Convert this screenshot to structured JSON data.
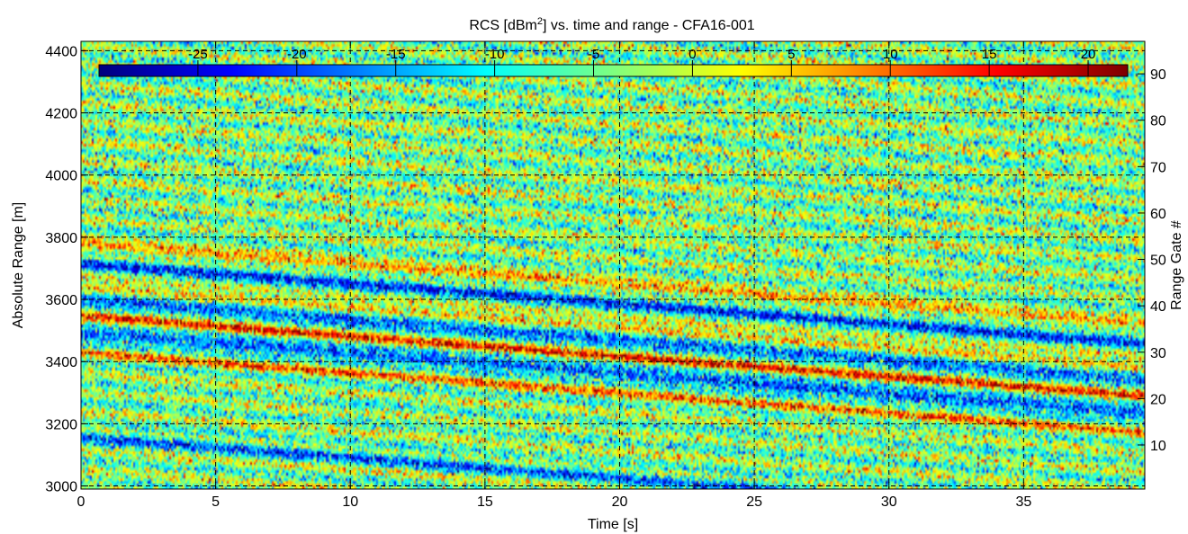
{
  "chart_data": {
    "type": "heatmap",
    "title": {
      "prefix": "RCS [dBm",
      "superscript": "2",
      "suffix": "] vs. time and range - CFA16-001"
    },
    "xlabel": "Time [s]",
    "ylabel": "Absolute Range [m]",
    "y2label": "Range Gate #",
    "xlim": [
      0,
      39.5
    ],
    "ylim": [
      2990,
      4430
    ],
    "y2lim": [
      0.5,
      97
    ],
    "xticks": [
      0,
      5,
      10,
      15,
      20,
      25,
      30,
      35
    ],
    "yticks": [
      3000,
      3200,
      3400,
      3600,
      3800,
      4000,
      4200,
      4400
    ],
    "y2ticks": [
      10,
      20,
      30,
      40,
      50,
      60,
      70,
      80,
      90
    ],
    "grid": true,
    "colormap": "jet",
    "colorbar": {
      "placement": "top-inside",
      "range": [
        -30,
        22
      ],
      "ticks": [
        -25,
        -20,
        -15,
        -10,
        -5,
        0,
        5,
        10,
        15,
        20
      ]
    },
    "features": {
      "description": "noisy RCS field with diagonal descending low/high RCS streaks",
      "streak_slope_m_per_s": -6.5,
      "streak_spacing_m": 62,
      "strong_bands_m": [
        {
          "range_at_t0": 3775,
          "value": 10
        },
        {
          "range_at_t0": 3640,
          "value": 10
        },
        {
          "range_at_t0": 3545,
          "value": 12
        },
        {
          "range_at_t0": 3430,
          "value": 8
        }
      ],
      "weak_bands_m": [
        {
          "range_at_t0": 3720,
          "value": -22
        },
        {
          "range_at_t0": 3605,
          "value": -22
        },
        {
          "range_at_t0": 3490,
          "value": -24
        },
        {
          "range_at_t0": 3160,
          "value": -18
        }
      ],
      "colors": {
        "low": "#00008f",
        "mid": "#80ff80",
        "high": "#800000"
      }
    }
  }
}
